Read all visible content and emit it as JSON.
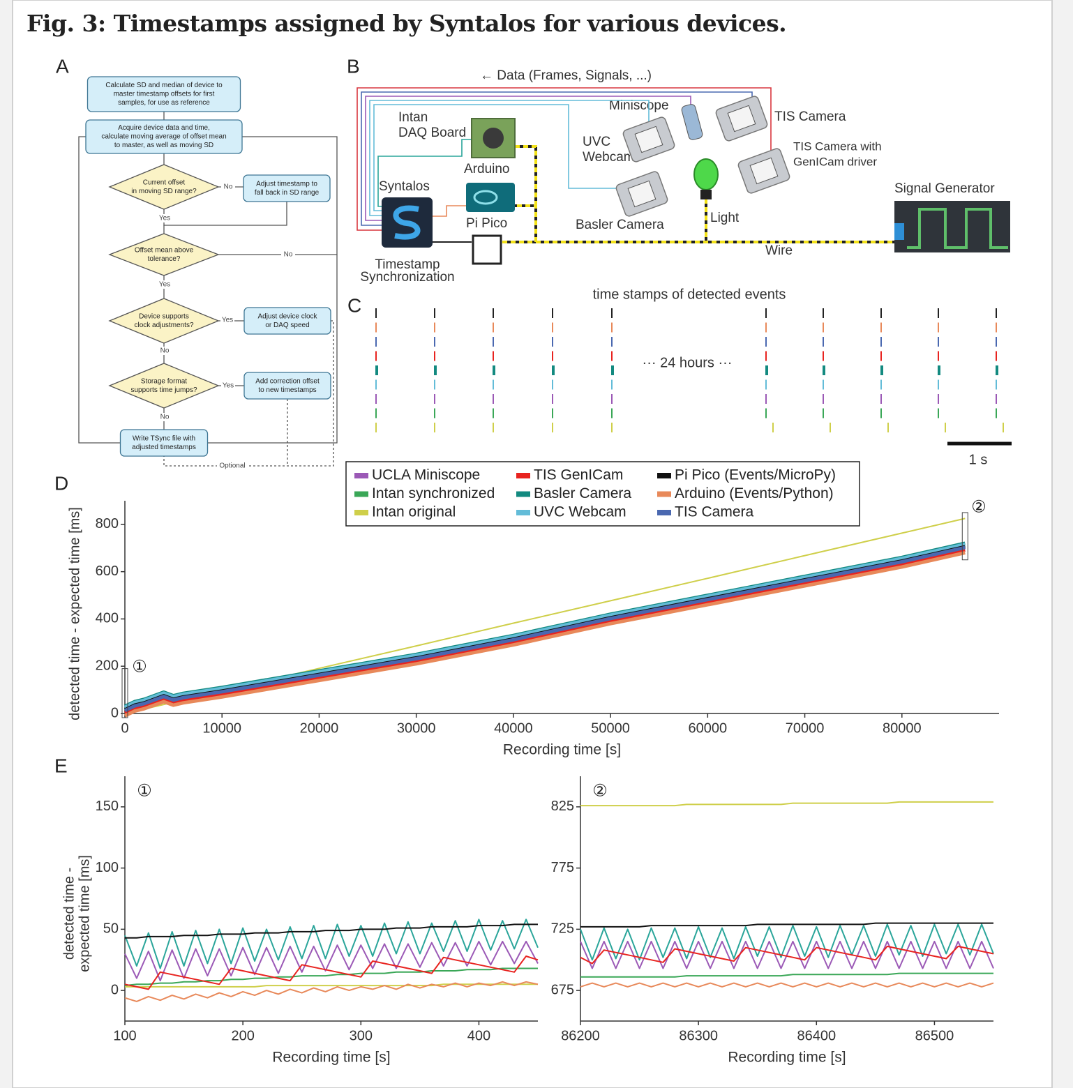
{
  "title": "Fig. 3: Timestamps assigned by Syntalos for various devices.",
  "panels": [
    "A",
    "B",
    "C",
    "D",
    "E"
  ],
  "flowchart": {
    "nodes": [
      {
        "lines": [
          "Calculate SD and median of device to",
          "master timestamp offsets for first",
          "samples, for use as reference"
        ]
      },
      {
        "lines": [
          "Acquire device data and time,",
          "calculate moving average of offset mean",
          "to master, as well as moving SD"
        ]
      },
      {
        "lines": [
          "Current offset",
          "in moving SD range?"
        ]
      },
      {
        "lines": [
          "Adjust timestamp to",
          "fall back in SD range"
        ]
      },
      {
        "lines": [
          "Offset mean above",
          "tolerance?"
        ]
      },
      {
        "lines": [
          "Device supports",
          "clock adjustments?"
        ]
      },
      {
        "lines": [
          "Adjust device clock",
          "or DAQ speed"
        ]
      },
      {
        "lines": [
          "Storage format",
          "supports time jumps?"
        ]
      },
      {
        "lines": [
          "Add correction offset",
          "to new timestamps"
        ]
      },
      {
        "lines": [
          "Write TSync file with",
          "adjusted timestamps"
        ]
      }
    ],
    "edge_labels": [
      "No",
      "Yes",
      "No",
      "Yes",
      "Yes",
      "No",
      "Yes",
      "No",
      "Optional"
    ]
  },
  "diagram": {
    "data_flow": "← Data (Frames, Signals, ...)",
    "intan": [
      "Intan",
      "DAQ Board"
    ],
    "miniscope": "Miniscope",
    "tis_camera": "TIS Camera",
    "uvc": [
      "UVC",
      "Webcam"
    ],
    "tis_genicam": [
      "TIS Camera with",
      "GenICam driver"
    ],
    "arduino": "Arduino",
    "syntalos": "Syntalos",
    "pi_pico": "Pi Pico",
    "basler": "Basler Camera",
    "light": "Light",
    "signal_generator": "Signal Generator",
    "wire": "Wire",
    "timestamp_sync": [
      "Timestamp",
      "Synchronization"
    ]
  },
  "events": {
    "title": "time stamps of detected events",
    "gap_label": "··· 24 hours ···",
    "scale_label": "1 s"
  },
  "chart_data": [
    {
      "type": "line",
      "xlabel": "Recording time [s]",
      "ylabel": "detected time - expected time [ms]",
      "xlim": [
        0,
        90000
      ],
      "ylim": [
        0,
        900
      ],
      "xticks": [
        0,
        10000,
        20000,
        30000,
        40000,
        50000,
        60000,
        70000,
        80000
      ],
      "yticks": [
        0,
        200,
        400,
        600,
        800
      ],
      "grid": false,
      "legend": "top",
      "annotations": [
        "①",
        "②"
      ],
      "x": [
        0,
        1000,
        2000,
        4000,
        5000,
        6000,
        10000,
        20000,
        30000,
        40000,
        50000,
        60000,
        70000,
        80000,
        86500
      ],
      "series": [
        {
          "name": "UCLA Miniscope",
          "color": "#9b59b6",
          "values": [
            22,
            42,
            52,
            82,
            67,
            77,
            102,
            172,
            242,
            322,
            412,
            492,
            572,
            652,
            712
          ]
        },
        {
          "name": "Intan synchronized",
          "color": "#3aa757",
          "values": [
            18,
            38,
            48,
            78,
            63,
            73,
            98,
            168,
            238,
            318,
            408,
            488,
            568,
            648,
            708
          ]
        },
        {
          "name": "Intan original",
          "color": "#cfcf4a",
          "values": [
            0,
            10,
            19,
            38,
            48,
            57,
            95,
            191,
            286,
            382,
            477,
            572,
            668,
            763,
            825
          ]
        },
        {
          "name": "TIS GenICam",
          "color": "#e8231f",
          "values": [
            2,
            22,
            32,
            62,
            47,
            57,
            82,
            152,
            222,
            302,
            392,
            472,
            552,
            632,
            692
          ]
        },
        {
          "name": "Basler Camera",
          "color": "#138a80",
          "values": [
            30,
            50,
            60,
            90,
            75,
            85,
            110,
            180,
            250,
            330,
            420,
            500,
            580,
            660,
            720
          ]
        },
        {
          "name": "UVC Webcam",
          "color": "#63bcd8",
          "values": [
            26,
            46,
            56,
            86,
            71,
            81,
            106,
            176,
            246,
            326,
            416,
            496,
            576,
            656,
            716
          ]
        },
        {
          "name": "Pi Pico (Events/MicroPy)",
          "color": "#111111",
          "values": [
            15,
            35,
            45,
            75,
            60,
            70,
            95,
            165,
            235,
            315,
            405,
            485,
            565,
            645,
            705
          ]
        },
        {
          "name": "Arduino (Events/Python)",
          "color": "#e8895a",
          "values": [
            -10,
            10,
            20,
            50,
            35,
            45,
            70,
            140,
            210,
            290,
            380,
            460,
            540,
            620,
            680
          ]
        },
        {
          "name": "TIS Camera",
          "color": "#4a68b0",
          "values": [
            12,
            32,
            42,
            72,
            57,
            67,
            92,
            162,
            232,
            312,
            402,
            482,
            562,
            642,
            702
          ]
        }
      ]
    },
    {
      "type": "line",
      "xlabel": "Recording time [s]",
      "ylabel": [
        "detected time -",
        "expected time [ms]"
      ],
      "xlim": [
        100,
        450
      ],
      "ylim": [
        -25,
        175
      ],
      "xticks": [
        100,
        200,
        300,
        400
      ],
      "yticks": [
        0,
        50,
        100,
        150
      ],
      "grid": false,
      "annotations": [
        "①"
      ],
      "x": [
        100,
        110,
        120,
        130,
        140,
        150,
        160,
        170,
        180,
        190,
        200,
        210,
        220,
        230,
        240,
        250,
        260,
        270,
        280,
        290,
        300,
        310,
        320,
        330,
        340,
        350,
        360,
        370,
        380,
        390,
        400,
        410,
        420,
        430,
        440,
        450
      ],
      "series": [
        {
          "color": "#cfcf4a",
          "values": [
            3,
            3,
            3,
            3,
            3,
            3,
            3,
            3,
            3,
            3,
            3,
            3,
            4,
            4,
            4,
            4,
            4,
            4,
            4,
            4,
            4,
            4,
            4,
            4,
            4,
            4,
            4,
            5,
            5,
            5,
            5,
            5,
            5,
            5,
            5,
            5
          ]
        },
        {
          "color": "#e8895a",
          "values": [
            -6,
            -9,
            -5,
            -8,
            -4,
            -7,
            -3,
            -6,
            -2,
            -5,
            -1,
            -4,
            0,
            -3,
            1,
            -2,
            2,
            -1,
            3,
            0,
            3,
            1,
            4,
            1,
            5,
            2,
            5,
            3,
            6,
            3,
            6,
            4,
            7,
            4,
            7,
            5
          ]
        },
        {
          "color": "#3aa757",
          "values": [
            4,
            5,
            5,
            6,
            6,
            7,
            7,
            8,
            8,
            9,
            9,
            10,
            10,
            11,
            11,
            12,
            12,
            12,
            13,
            13,
            14,
            14,
            14,
            15,
            15,
            15,
            16,
            16,
            16,
            17,
            17,
            17,
            18,
            18,
            18,
            18
          ]
        },
        {
          "color": "#9b59b6",
          "values": [
            30,
            10,
            32,
            8,
            33,
            10,
            34,
            12,
            34,
            12,
            35,
            13,
            35,
            14,
            36,
            15,
            36,
            16,
            37,
            17,
            37,
            18,
            38,
            18,
            38,
            19,
            39,
            20,
            39,
            20,
            40,
            21,
            40,
            22,
            40,
            22
          ]
        },
        {
          "color": "#2aa59a",
          "values": [
            45,
            20,
            47,
            18,
            48,
            20,
            49,
            22,
            50,
            22,
            51,
            24,
            50,
            25,
            52,
            26,
            53,
            26,
            54,
            28,
            53,
            28,
            55,
            30,
            56,
            30,
            55,
            32,
            57,
            32,
            58,
            33,
            57,
            34,
            58,
            35
          ]
        },
        {
          "color": "#e8231f",
          "values": [
            5,
            3,
            1,
            15,
            13,
            11,
            9,
            7,
            5,
            18,
            16,
            14,
            12,
            10,
            8,
            21,
            19,
            17,
            15,
            13,
            11,
            24,
            22,
            20,
            18,
            16,
            14,
            27,
            25,
            23,
            21,
            19,
            17,
            15,
            28,
            25
          ]
        },
        {
          "color": "#111111",
          "values": [
            43,
            43,
            44,
            44,
            44,
            45,
            45,
            45,
            46,
            46,
            46,
            47,
            47,
            47,
            48,
            48,
            48,
            49,
            49,
            49,
            50,
            50,
            50,
            51,
            51,
            51,
            52,
            52,
            52,
            52,
            53,
            53,
            53,
            54,
            54,
            54
          ]
        }
      ]
    },
    {
      "type": "line",
      "xlabel": "Recording time [s]",
      "xlim": [
        86200,
        86550
      ],
      "ylim": [
        650,
        850
      ],
      "xticks": [
        86200,
        86300,
        86400,
        86500
      ],
      "yticks": [
        675,
        725,
        775,
        825
      ],
      "grid": false,
      "annotations": [
        "②"
      ],
      "x": [
        86200,
        86210,
        86220,
        86230,
        86240,
        86250,
        86260,
        86270,
        86280,
        86290,
        86300,
        86310,
        86320,
        86330,
        86340,
        86350,
        86360,
        86370,
        86380,
        86390,
        86400,
        86410,
        86420,
        86430,
        86440,
        86450,
        86460,
        86470,
        86480,
        86490,
        86500,
        86510,
        86520,
        86530,
        86540,
        86550
      ],
      "series": [
        {
          "color": "#cfcf4a",
          "values": [
            826,
            826,
            826,
            826,
            826,
            826,
            826,
            826,
            826,
            827,
            827,
            827,
            827,
            827,
            827,
            827,
            827,
            827,
            828,
            828,
            828,
            828,
            828,
            828,
            828,
            828,
            828,
            829,
            829,
            829,
            829,
            829,
            829,
            829,
            829,
            829
          ]
        },
        {
          "color": "#e8895a",
          "values": [
            678,
            681,
            678,
            681,
            678,
            681,
            678,
            681,
            678,
            681,
            678,
            681,
            678,
            681,
            678,
            681,
            678,
            681,
            678,
            681,
            678,
            681,
            678,
            681,
            678,
            681,
            678,
            681,
            678,
            681,
            678,
            681,
            678,
            681,
            678,
            681
          ]
        },
        {
          "color": "#3aa757",
          "values": [
            686,
            686,
            686,
            686,
            686,
            686,
            686,
            686,
            686,
            687,
            687,
            687,
            687,
            687,
            687,
            687,
            687,
            687,
            688,
            688,
            688,
            688,
            688,
            688,
            688,
            688,
            688,
            689,
            689,
            689,
            689,
            689,
            689,
            689,
            689,
            689
          ]
        },
        {
          "color": "#9b59b6",
          "values": [
            715,
            693,
            715,
            693,
            715,
            693,
            715,
            693,
            715,
            693,
            715,
            693,
            715,
            693,
            715,
            693,
            715,
            693,
            715,
            693,
            715,
            693,
            715,
            693,
            715,
            693,
            715,
            693,
            715,
            693,
            715,
            693,
            715,
            693,
            715,
            693
          ]
        },
        {
          "color": "#2aa59a",
          "values": [
            725,
            700,
            726,
            701,
            725,
            700,
            726,
            702,
            726,
            701,
            727,
            702,
            726,
            701,
            727,
            703,
            727,
            702,
            728,
            703,
            727,
            702,
            728,
            704,
            728,
            703,
            729,
            704,
            728,
            703,
            729,
            705,
            729,
            704,
            729,
            705
          ]
        },
        {
          "color": "#e8231f",
          "values": [
            702,
            697,
            708,
            706,
            704,
            702,
            700,
            698,
            709,
            707,
            705,
            703,
            701,
            699,
            710,
            708,
            706,
            704,
            702,
            700,
            710,
            708,
            706,
            704,
            702,
            700,
            711,
            709,
            707,
            705,
            703,
            701,
            711,
            709,
            707,
            705
          ]
        },
        {
          "color": "#111111",
          "values": [
            727,
            727,
            727,
            727,
            727,
            727,
            728,
            728,
            728,
            728,
            728,
            728,
            728,
            728,
            728,
            729,
            729,
            729,
            729,
            729,
            729,
            729,
            729,
            729,
            729,
            730,
            730,
            730,
            730,
            730,
            730,
            730,
            730,
            730,
            730,
            730
          ]
        }
      ]
    }
  ]
}
